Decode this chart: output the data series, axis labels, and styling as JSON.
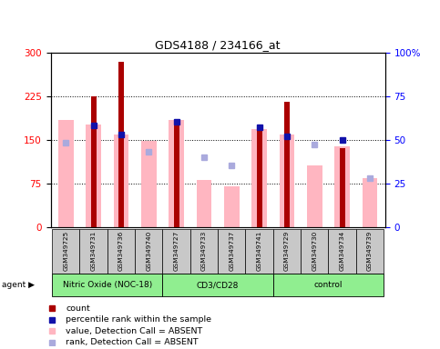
{
  "title": "GDS4188 / 234166_at",
  "samples": [
    "GSM349725",
    "GSM349731",
    "GSM349736",
    "GSM349740",
    "GSM349727",
    "GSM349733",
    "GSM349737",
    "GSM349741",
    "GSM349729",
    "GSM349730",
    "GSM349734",
    "GSM349739"
  ],
  "red_bars": [
    null,
    225,
    283,
    null,
    183,
    null,
    null,
    170,
    215,
    null,
    135,
    null
  ],
  "pink_bars": [
    183,
    176,
    158,
    148,
    183,
    80,
    70,
    168,
    158,
    105,
    138,
    83
  ],
  "blue_sq_pct": [
    null,
    58,
    53,
    null,
    60,
    null,
    null,
    57,
    52,
    null,
    50,
    null
  ],
  "lav_sq_pct": [
    48,
    null,
    null,
    43,
    null,
    40,
    35,
    null,
    null,
    47,
    null,
    28
  ],
  "ylim_left": [
    0,
    300
  ],
  "ylim_right": [
    0,
    100
  ],
  "yticks_left": [
    0,
    75,
    150,
    225,
    300
  ],
  "yticks_right": [
    0,
    25,
    50,
    75,
    100
  ],
  "red_bar_color": "#AA0000",
  "pink_bar_color": "#FFB6C1",
  "blue_sq_color": "#1111AA",
  "lav_sq_color": "#AAAADD",
  "groups": [
    {
      "name": "Nitric Oxide (NOC-18)",
      "start": 0,
      "end": 3
    },
    {
      "name": "CD3/CD28",
      "start": 4,
      "end": 7
    },
    {
      "name": "control",
      "start": 8,
      "end": 11
    }
  ]
}
